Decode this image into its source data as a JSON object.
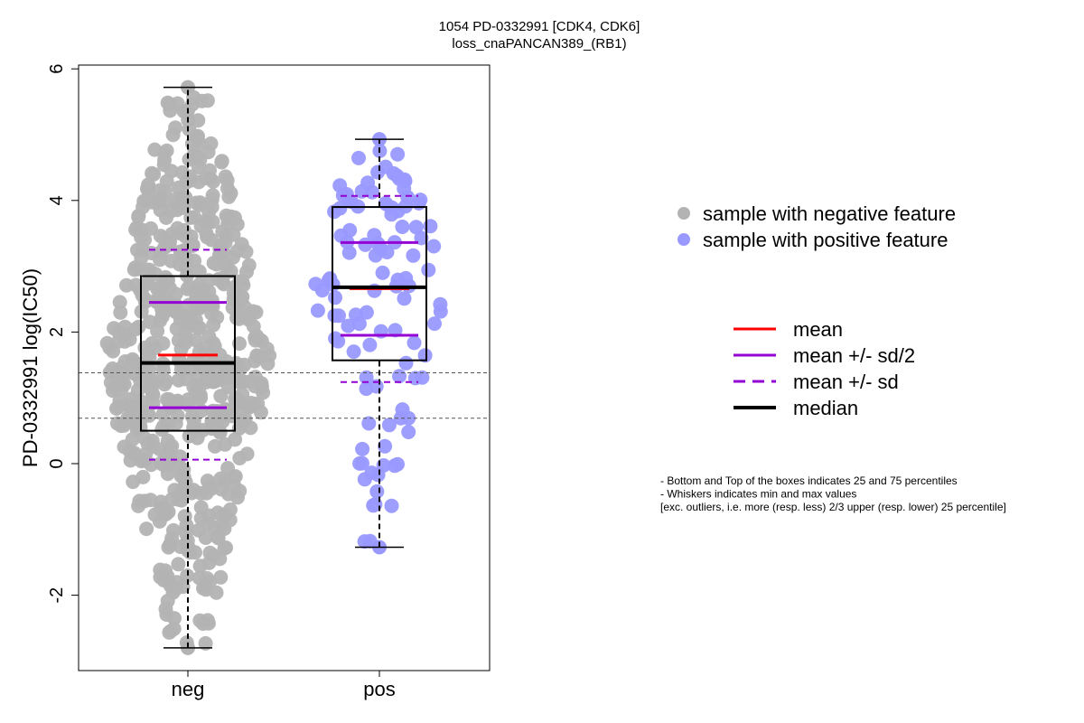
{
  "chart_data": {
    "type": "boxplot-beeswarm",
    "title": "1054 PD-0332991 [CDK4, CDK6]",
    "subtitle": "loss_cnaPANCAN389_(RB1)",
    "ylabel": "PD-0332991 log(IC50)",
    "xlabel": "",
    "ylim": [
      -3.1,
      6.05
    ],
    "yticks": [
      -2,
      0,
      2,
      4,
      6
    ],
    "reference_lines": [
      1.38,
      0.69
    ],
    "categories": [
      "neg",
      "pos"
    ],
    "groups": [
      {
        "name": "neg",
        "color": "#b3b3b3",
        "n": 620,
        "whisker_min": -2.8,
        "q1": 0.5,
        "median": 1.53,
        "q3": 2.85,
        "whisker_max": 5.72,
        "mean": 1.65,
        "mean_minus_half_sd": 0.85,
        "mean_plus_half_sd": 2.45,
        "mean_minus_sd": 0.06,
        "mean_plus_sd": 3.25
      },
      {
        "name": "pos",
        "color": "#9999ff",
        "n": 110,
        "whisker_min": -1.27,
        "q1": 1.57,
        "median": 2.68,
        "q3": 3.9,
        "whisker_max": 4.93,
        "mean": 2.66,
        "mean_minus_half_sd": 1.95,
        "mean_plus_half_sd": 3.36,
        "mean_minus_sd": 1.24,
        "mean_plus_sd": 4.07
      }
    ],
    "legend_points": [
      {
        "label": "sample with negative feature",
        "color": "#b3b3b3"
      },
      {
        "label": "sample with positive feature",
        "color": "#9999ff"
      }
    ],
    "legend_lines": [
      {
        "label": "mean",
        "color": "#ff0000",
        "dash": false
      },
      {
        "label": "mean +/- sd/2",
        "color": "#9400d3",
        "dash": false
      },
      {
        "label": "mean +/- sd",
        "color": "#9400d3",
        "dash": true
      },
      {
        "label": "median",
        "color": "#000000",
        "dash": false
      }
    ],
    "notes": [
      "- Bottom and Top of the boxes indicates 25 and 75 percentiles",
      "- Whiskers indicates min and max values",
      "[exc. outliers, i.e. more (resp. less) 2/3 upper (resp. lower) 25 percentile]"
    ]
  }
}
